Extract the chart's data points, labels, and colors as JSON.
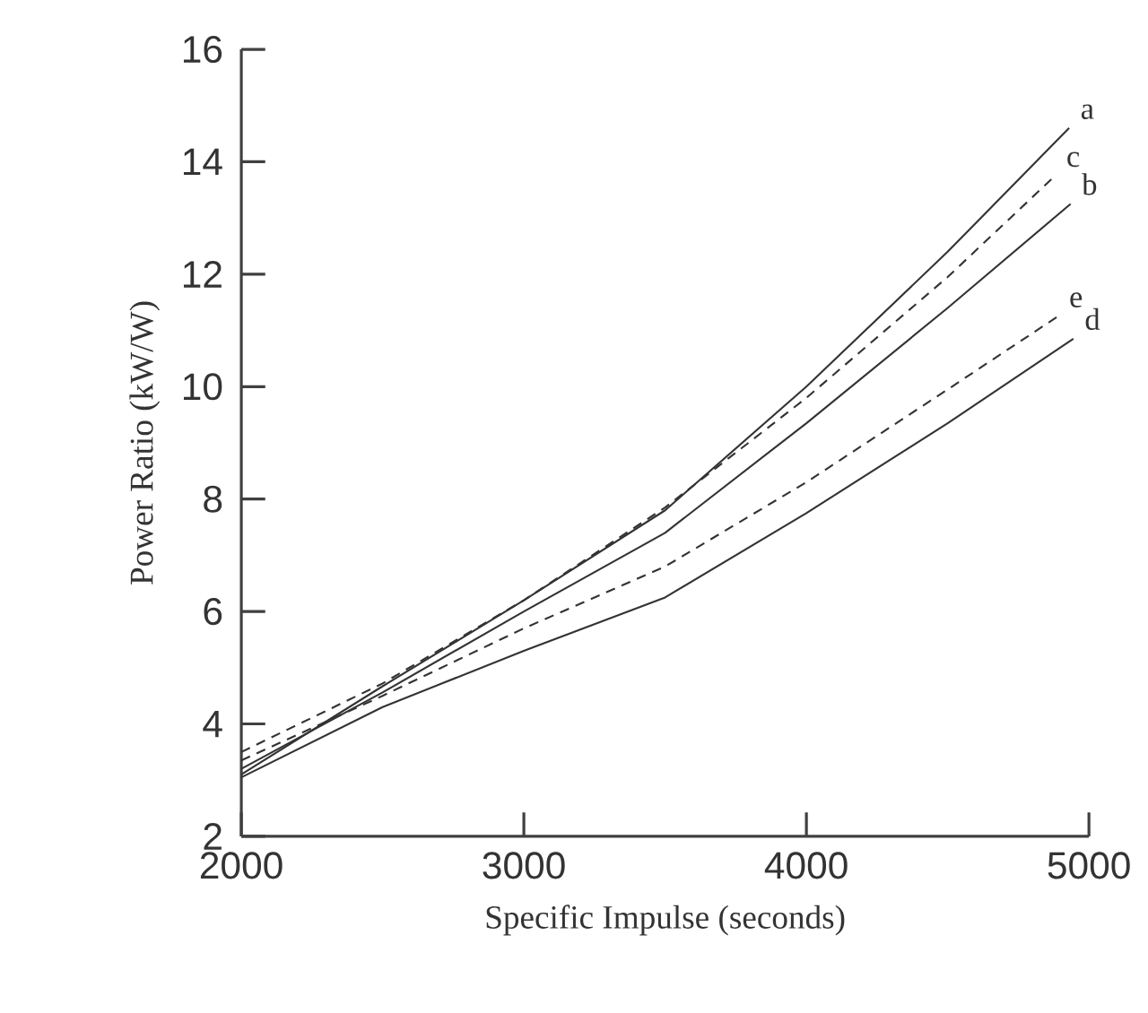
{
  "chart_data": {
    "type": "line",
    "xlabel": "Specific Impulse (seconds)",
    "ylabel": "Power Ratio (kW/W)",
    "xlim": [
      2000,
      5000
    ],
    "ylim": [
      2,
      16
    ],
    "xticks": [
      2000,
      3000,
      4000,
      5000
    ],
    "yticks": [
      2,
      4,
      6,
      8,
      10,
      12,
      14,
      16
    ],
    "series": [
      {
        "name": "a",
        "color": "#333333",
        "line_style": "solid",
        "x": [
          2000,
          2500,
          3000,
          3500,
          4000,
          4500,
          4930
        ],
        "values": [
          3.1,
          4.67,
          6.2,
          7.8,
          10.0,
          12.4,
          14.6
        ]
      },
      {
        "name": "c",
        "color": "#333333",
        "line_style": "dashed",
        "x": [
          2000,
          2500,
          3000,
          3500,
          4000,
          4500,
          4880
        ],
        "values": [
          3.5,
          4.72,
          6.2,
          7.85,
          9.8,
          11.95,
          13.75
        ]
      },
      {
        "name": "b",
        "color": "#333333",
        "line_style": "solid",
        "x": [
          2000,
          2500,
          3000,
          3500,
          4000,
          4500,
          4935
        ],
        "values": [
          3.2,
          4.56,
          6.0,
          7.4,
          9.35,
          11.4,
          13.25
        ]
      },
      {
        "name": "e",
        "color": "#333333",
        "line_style": "dashed",
        "x": [
          2000,
          2500,
          3000,
          3500,
          4000,
          4500,
          4890
        ],
        "values": [
          3.35,
          4.5,
          5.7,
          6.8,
          8.3,
          9.95,
          11.25
        ]
      },
      {
        "name": "d",
        "color": "#333333",
        "line_style": "solid",
        "x": [
          2000,
          2500,
          3000,
          3500,
          4000,
          4500,
          4945
        ],
        "values": [
          3.05,
          4.3,
          5.3,
          6.25,
          7.75,
          9.35,
          10.85
        ]
      }
    ]
  }
}
